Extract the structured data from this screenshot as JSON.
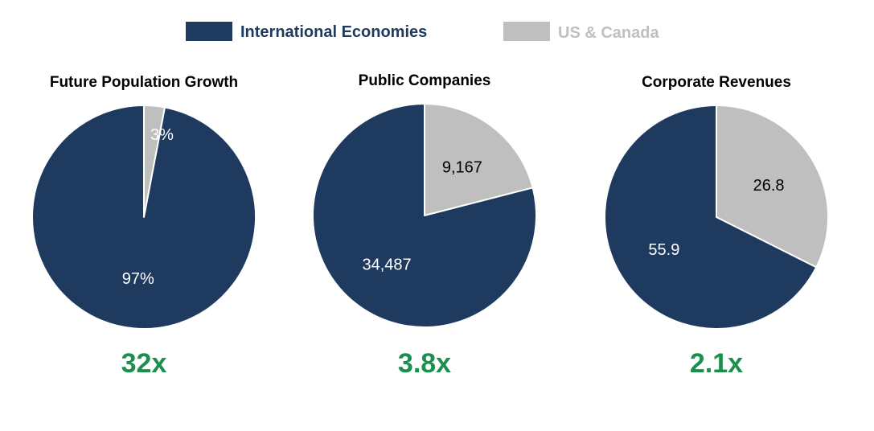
{
  "legend": {
    "international": {
      "label": "International Economies",
      "color": "#1f3a5f",
      "text_color": "#1f3a5f"
    },
    "us_canada": {
      "label": "US & Canada",
      "color": "#bfbfbf",
      "text_color": "#c0c0c0"
    }
  },
  "colors": {
    "multiplier": "#1a8f4e",
    "slice_border": "#ffffff",
    "label_on_dark": "#ffffff",
    "label_on_light": "#000000"
  },
  "chart_data": [
    {
      "type": "pie",
      "title": "Future Population Growth",
      "series": [
        {
          "name": "US & Canada",
          "value": 3,
          "label": "3%"
        },
        {
          "name": "International Economies",
          "value": 97,
          "label": "97%"
        }
      ],
      "multiplier": "32x"
    },
    {
      "type": "pie",
      "title": "Public Companies",
      "series": [
        {
          "name": "US & Canada",
          "value": 9167,
          "label": "9,167"
        },
        {
          "name": "International Economies",
          "value": 34487,
          "label": "34,487"
        }
      ],
      "multiplier": "3.8x"
    },
    {
      "type": "pie",
      "title": "Corporate Revenues",
      "series": [
        {
          "name": "US & Canada",
          "value": 26.8,
          "label": "26.8"
        },
        {
          "name": "International Economies",
          "value": 55.9,
          "label": "55.9"
        }
      ],
      "multiplier": "2.1x"
    }
  ]
}
